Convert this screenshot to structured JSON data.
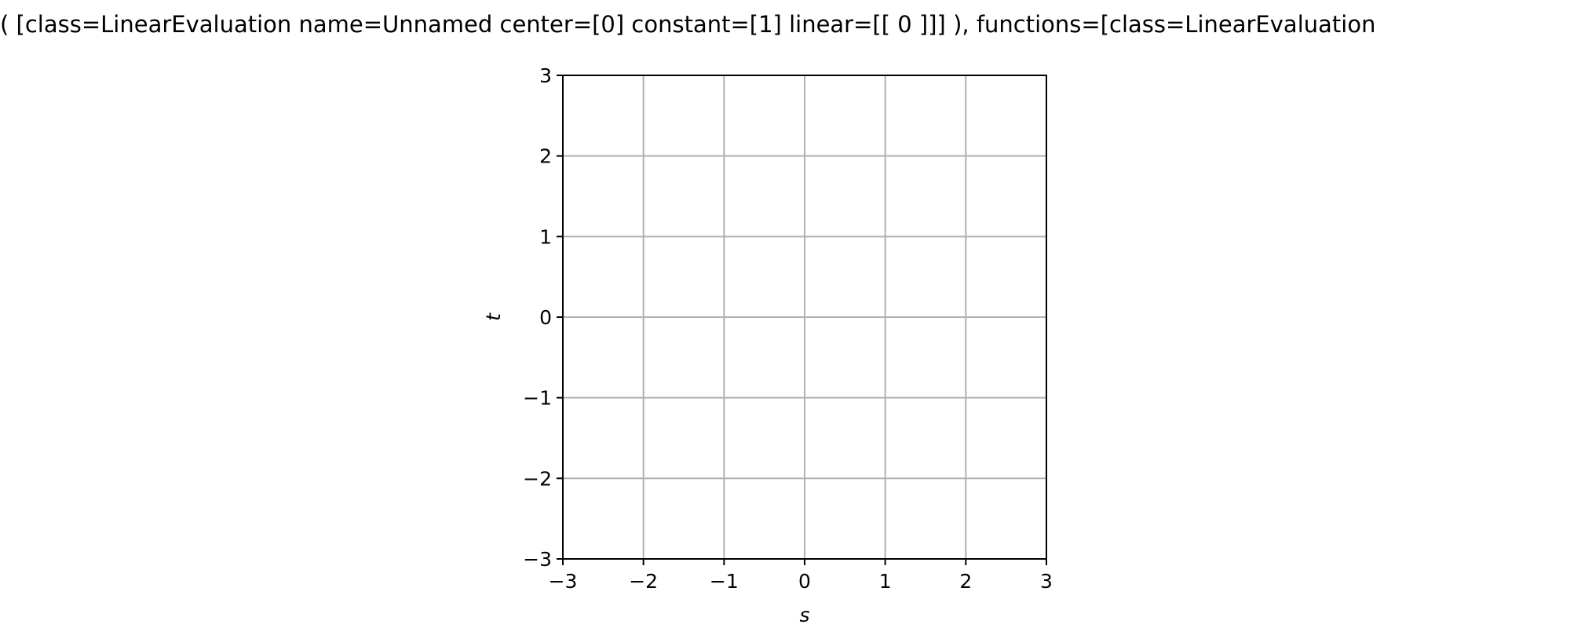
{
  "chart_data": {
    "type": "scatter",
    "title": "( [class=LinearEvaluation name=Unnamed center=[0] constant=[1] linear=[[ 0 ]]] ), functions=[class=LinearEvaluation",
    "xlabel": "s",
    "ylabel": "t",
    "xlim": [
      -3,
      3
    ],
    "ylim": [
      -3,
      3
    ],
    "xticks": [
      -3,
      -2,
      -1,
      0,
      1,
      2,
      3
    ],
    "yticks": [
      -3,
      -2,
      -1,
      0,
      1,
      2,
      3
    ],
    "xtick_labels": [
      "−3",
      "−2",
      "−1",
      "0",
      "1",
      "2",
      "3"
    ],
    "ytick_labels": [
      "−3",
      "−2",
      "−1",
      "0",
      "1",
      "2",
      "3"
    ],
    "grid": true,
    "series": []
  },
  "colors": {
    "grid": "#b0b0b0",
    "axes": "#000000",
    "background": "#ffffff"
  }
}
